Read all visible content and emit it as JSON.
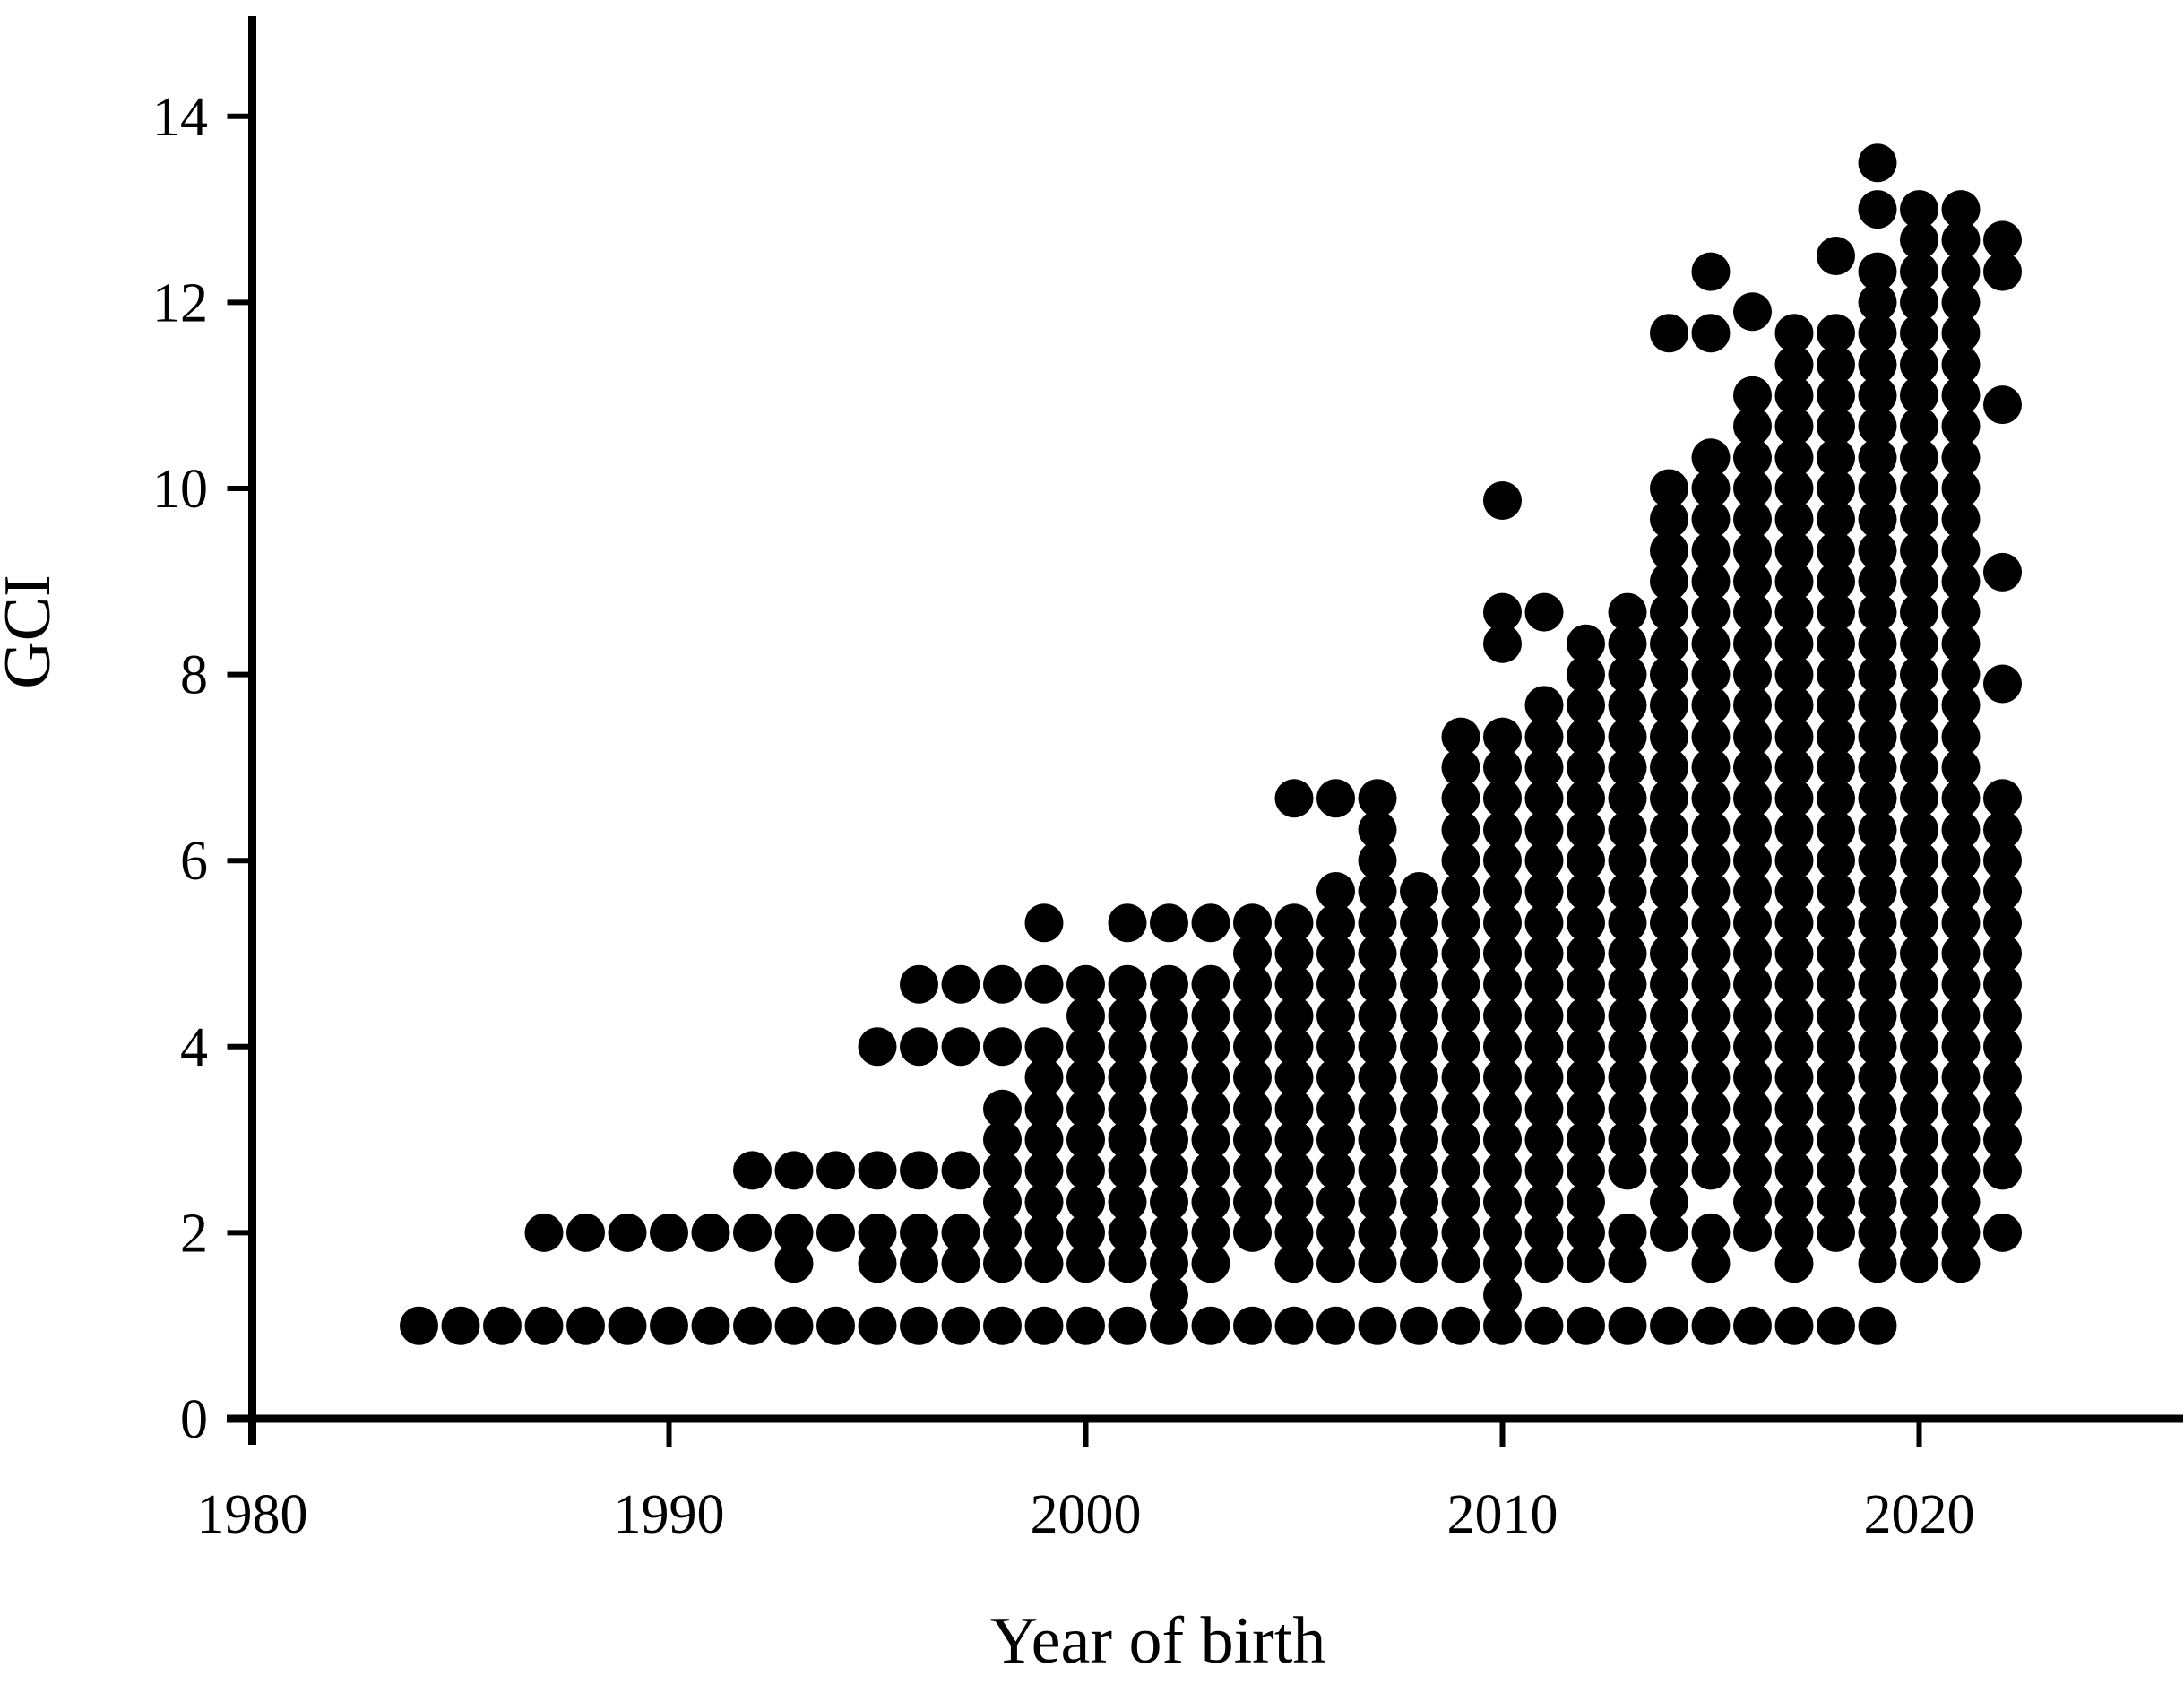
{
  "figure": {
    "background_color": "#ffffff",
    "ink_color": "#000000"
  },
  "chart_data": {
    "type": "scatter",
    "title": "",
    "xlabel": "Year of birth",
    "ylabel": "GCI",
    "x_ticks": [
      1980,
      1990,
      2000,
      2010,
      2020
    ],
    "y_ticks": [
      0,
      2,
      4,
      6,
      8,
      10,
      12,
      14
    ],
    "xlim": [
      1978,
      2026
    ],
    "ylim": [
      0,
      15
    ],
    "grid": false,
    "legend": "none",
    "marker": {
      "shape": "circle",
      "color": "#000000",
      "radius_px": 21.5
    },
    "points_by_year": {
      "1984": [
        1
      ],
      "1985": [
        1
      ],
      "1986": [
        1
      ],
      "1987": [
        1,
        2
      ],
      "1988": [
        1,
        2
      ],
      "1989": [
        1,
        2
      ],
      "1990": [
        1,
        2
      ],
      "1991": [
        1,
        2
      ],
      "1992": [
        1,
        2,
        2.67
      ],
      "1993": [
        1,
        1.67,
        2,
        2.67
      ],
      "1994": [
        1,
        2,
        2.67
      ],
      "1995": [
        1,
        1.67,
        2,
        2.67,
        4
      ],
      "1996": [
        1,
        1.67,
        2,
        2.67,
        4,
        4.67
      ],
      "1997": [
        1,
        1.67,
        2,
        2.67,
        4,
        4.67
      ],
      "1998": [
        1,
        1.67,
        2,
        2.33,
        2.67,
        3,
        3.33,
        4,
        4.67
      ],
      "1999": [
        1,
        1.67,
        2,
        2.33,
        2.67,
        3,
        3.33,
        3.67,
        4,
        4.67,
        5.33
      ],
      "2000": [
        1,
        1.67,
        2,
        2.33,
        2.67,
        3,
        3.33,
        3.67,
        4,
        4.33,
        4.67
      ],
      "2001": [
        1,
        1.67,
        2,
        2.33,
        2.67,
        3,
        3.33,
        3.67,
        4,
        4.33,
        4.67,
        5.33
      ],
      "2002": [
        1,
        1.33,
        1.67,
        2,
        2.33,
        2.67,
        3,
        3.33,
        3.67,
        4,
        4.33,
        4.67,
        5.33
      ],
      "2003": [
        1,
        1.67,
        2,
        2.33,
        2.67,
        3,
        3.33,
        3.67,
        4,
        4.33,
        4.67,
        5.33
      ],
      "2004": [
        1,
        2,
        2.33,
        2.67,
        3,
        3.33,
        3.67,
        4,
        4.33,
        4.67,
        5,
        5.33
      ],
      "2005": [
        1,
        1.67,
        2,
        2.33,
        2.67,
        3,
        3.33,
        3.67,
        4,
        4.33,
        4.67,
        5,
        5.33,
        6.67
      ],
      "2006": [
        1,
        1.67,
        2,
        2.33,
        2.67,
        3,
        3.33,
        3.67,
        4,
        4.33,
        4.67,
        5,
        5.33,
        5.67,
        6.67
      ],
      "2007": [
        1,
        1.67,
        2,
        2.33,
        2.67,
        3,
        3.33,
        3.67,
        4,
        4.33,
        4.67,
        5,
        5.33,
        5.67,
        6,
        6.33,
        6.67
      ],
      "2008": [
        1,
        1.67,
        2,
        2.33,
        2.67,
        3,
        3.33,
        3.67,
        4,
        4.33,
        4.67,
        5,
        5.33,
        5.67
      ],
      "2009": [
        1,
        1.67,
        2,
        2.33,
        2.67,
        3,
        3.33,
        3.67,
        4,
        4.33,
        4.67,
        5,
        5.33,
        5.67,
        6,
        6.33,
        6.67,
        7,
        7.33
      ],
      "2010": [
        1,
        1.33,
        1.67,
        2,
        2.33,
        2.67,
        3,
        3.33,
        3.67,
        4,
        4.33,
        4.67,
        5,
        5.33,
        5.67,
        6,
        6.33,
        6.67,
        7,
        7.33,
        8.33,
        8.67,
        9.87
      ],
      "2011": [
        1,
        1.67,
        2,
        2.33,
        2.67,
        3,
        3.33,
        3.67,
        4,
        4.33,
        4.67,
        5,
        5.33,
        5.67,
        6,
        6.33,
        6.67,
        7,
        7.33,
        7.67,
        8.67
      ],
      "2012": [
        1,
        1.67,
        2,
        2.33,
        2.67,
        3,
        3.33,
        3.67,
        4,
        4.33,
        4.67,
        5,
        5.33,
        5.67,
        6,
        6.33,
        6.67,
        7,
        7.33,
        7.67,
        8,
        8.33
      ],
      "2013": [
        1,
        1.67,
        2,
        2.67,
        3,
        3.33,
        3.67,
        4,
        4.33,
        4.67,
        5,
        5.33,
        5.67,
        6,
        6.33,
        6.67,
        7,
        7.33,
        7.67,
        8,
        8.33,
        8.67
      ],
      "2014": [
        1,
        2,
        2.33,
        2.67,
        3,
        3.33,
        3.67,
        4,
        4.33,
        4.67,
        5,
        5.33,
        5.67,
        6,
        6.33,
        6.67,
        7,
        7.33,
        7.67,
        8,
        8.33,
        8.67,
        9,
        9.33,
        9.67,
        10,
        11.67
      ],
      "2015": [
        1,
        1.67,
        2,
        2.67,
        3,
        3.33,
        3.67,
        4,
        4.33,
        4.67,
        5,
        5.33,
        5.67,
        6,
        6.33,
        6.67,
        7,
        7.33,
        7.67,
        8,
        8.33,
        8.67,
        9,
        9.33,
        9.67,
        10,
        10.33,
        11.67,
        12.33
      ],
      "2016": [
        1,
        2,
        2.33,
        2.67,
        3,
        3.33,
        3.67,
        4,
        4.33,
        4.67,
        5,
        5.33,
        5.67,
        6,
        6.33,
        6.67,
        7,
        7.33,
        7.67,
        8,
        8.33,
        8.67,
        9,
        9.33,
        9.67,
        10,
        10.33,
        10.67,
        11,
        11.9
      ],
      "2017": [
        1,
        1.67,
        2,
        2.33,
        2.67,
        3,
        3.33,
        3.67,
        4,
        4.33,
        4.67,
        5,
        5.33,
        5.67,
        6,
        6.33,
        6.67,
        7,
        7.33,
        7.67,
        8,
        8.33,
        8.67,
        9,
        9.33,
        9.67,
        10,
        10.33,
        10.67,
        11,
        11.33,
        11.67
      ],
      "2018": [
        1,
        2,
        2.33,
        2.67,
        3,
        3.33,
        3.67,
        4,
        4.33,
        4.67,
        5,
        5.33,
        5.67,
        6,
        6.33,
        6.67,
        7,
        7.33,
        7.67,
        8,
        8.33,
        8.67,
        9,
        9.33,
        9.67,
        10,
        10.33,
        10.67,
        11,
        11.33,
        11.67,
        12.5
      ],
      "2019": [
        1,
        1.67,
        2,
        2.33,
        2.67,
        3,
        3.33,
        3.67,
        4,
        4.33,
        4.67,
        5,
        5.33,
        5.67,
        6,
        6.33,
        6.67,
        7,
        7.33,
        7.67,
        8,
        8.33,
        8.67,
        9,
        9.33,
        9.67,
        10,
        10.33,
        10.67,
        11,
        11.33,
        11.67,
        12,
        12.33,
        13,
        13.5
      ],
      "2020": [
        1.67,
        2,
        2.33,
        2.67,
        3,
        3.33,
        3.67,
        4,
        4.33,
        4.67,
        5,
        5.33,
        5.67,
        6,
        6.33,
        6.67,
        7,
        7.33,
        7.67,
        8,
        8.33,
        8.67,
        9,
        9.33,
        9.67,
        10,
        10.33,
        10.67,
        11,
        11.33,
        11.67,
        12,
        12.33,
        12.67,
        13
      ],
      "2021": [
        1.67,
        2,
        2.33,
        2.67,
        3,
        3.33,
        3.67,
        4,
        4.33,
        4.67,
        5,
        5.33,
        5.67,
        6,
        6.33,
        6.67,
        7,
        7.33,
        7.67,
        8,
        8.33,
        8.67,
        9,
        9.33,
        9.67,
        10,
        10.33,
        10.67,
        11,
        11.33,
        11.67,
        12,
        12.33,
        12.67,
        13
      ],
      "2022": [
        2,
        2.67,
        3,
        3.33,
        3.67,
        4,
        4.33,
        4.67,
        5,
        5.33,
        5.67,
        6,
        6.33,
        6.67,
        7.9,
        9.1,
        10.9,
        12.33,
        12.67
      ]
    }
  }
}
